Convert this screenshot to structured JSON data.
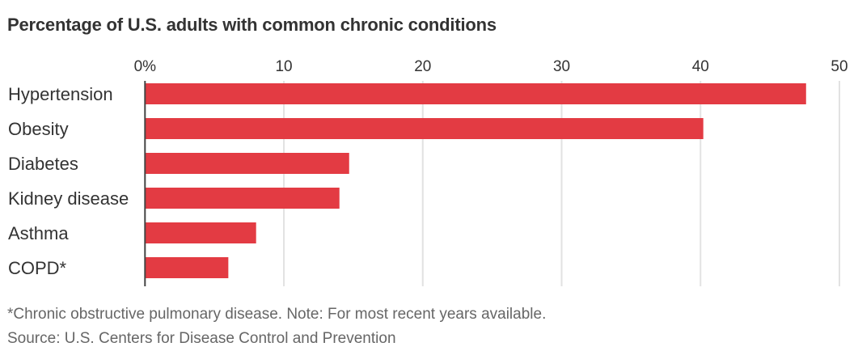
{
  "chart_data": {
    "type": "bar",
    "orientation": "horizontal",
    "title": "Percentage of U.S. adults with common chronic conditions",
    "categories": [
      "Hypertension",
      "Obesity",
      "Diabetes",
      "Kidney disease",
      "Asthma",
      "COPD*"
    ],
    "values": [
      47.6,
      40.2,
      14.7,
      14.0,
      8.0,
      6.0
    ],
    "xlim": [
      0,
      50
    ],
    "xticks": [
      0,
      10,
      20,
      30,
      40,
      50
    ],
    "xtick_labels": [
      "0%",
      "10",
      "20",
      "30",
      "40",
      "50"
    ],
    "xlabel": "",
    "ylabel": "",
    "grid": "vertical",
    "bar_color": "#e33b43",
    "footnote": "*Chronic obstructive pulmonary disease. Note: For most recent years available.",
    "source": "Source: U.S. Centers for Disease Control and Prevention"
  }
}
